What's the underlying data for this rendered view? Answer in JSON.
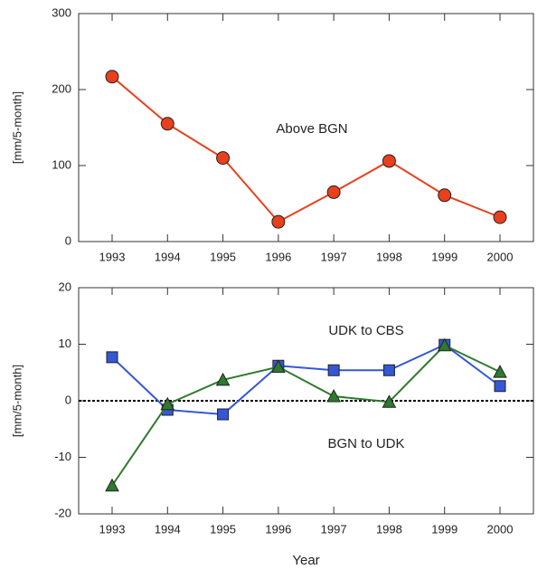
{
  "chart_data": [
    {
      "type": "line",
      "ylabel": "[mm/5-month]",
      "categories": [
        "1993",
        "1994",
        "1995",
        "1996",
        "1997",
        "1998",
        "1999",
        "2000"
      ],
      "series": [
        {
          "color": "#e8401c",
          "marker": "circle",
          "values": [
            217,
            155,
            110,
            26,
            65,
            106,
            61,
            32
          ]
        }
      ],
      "ylim": [
        0,
        300
      ],
      "yticks": [
        0,
        100,
        200,
        300
      ],
      "annotations": [
        "Above BGN"
      ]
    },
    {
      "type": "line",
      "ylabel": "[mm/5-month]",
      "xlabel": "Year",
      "categories": [
        "1993",
        "1994",
        "1995",
        "1996",
        "1997",
        "1998",
        "1999",
        "2000"
      ],
      "series": [
        {
          "color": "#3557d6",
          "marker": "square",
          "values": [
            7.7,
            -1.6,
            -2.4,
            6.2,
            5.4,
            5.4,
            9.9,
            2.6
          ]
        },
        {
          "color": "#2e7a2e",
          "marker": "triangle",
          "values": [
            -15,
            -0.6,
            3.7,
            6,
            0.8,
            -0.2,
            9.8,
            5.1
          ]
        }
      ],
      "ylim": [
        -20,
        20
      ],
      "yticks": [
        -20,
        -10,
        0,
        10,
        20
      ],
      "reference_line": 0,
      "annotations": [
        "UDK to CBS",
        "BGN to UDK"
      ]
    }
  ]
}
